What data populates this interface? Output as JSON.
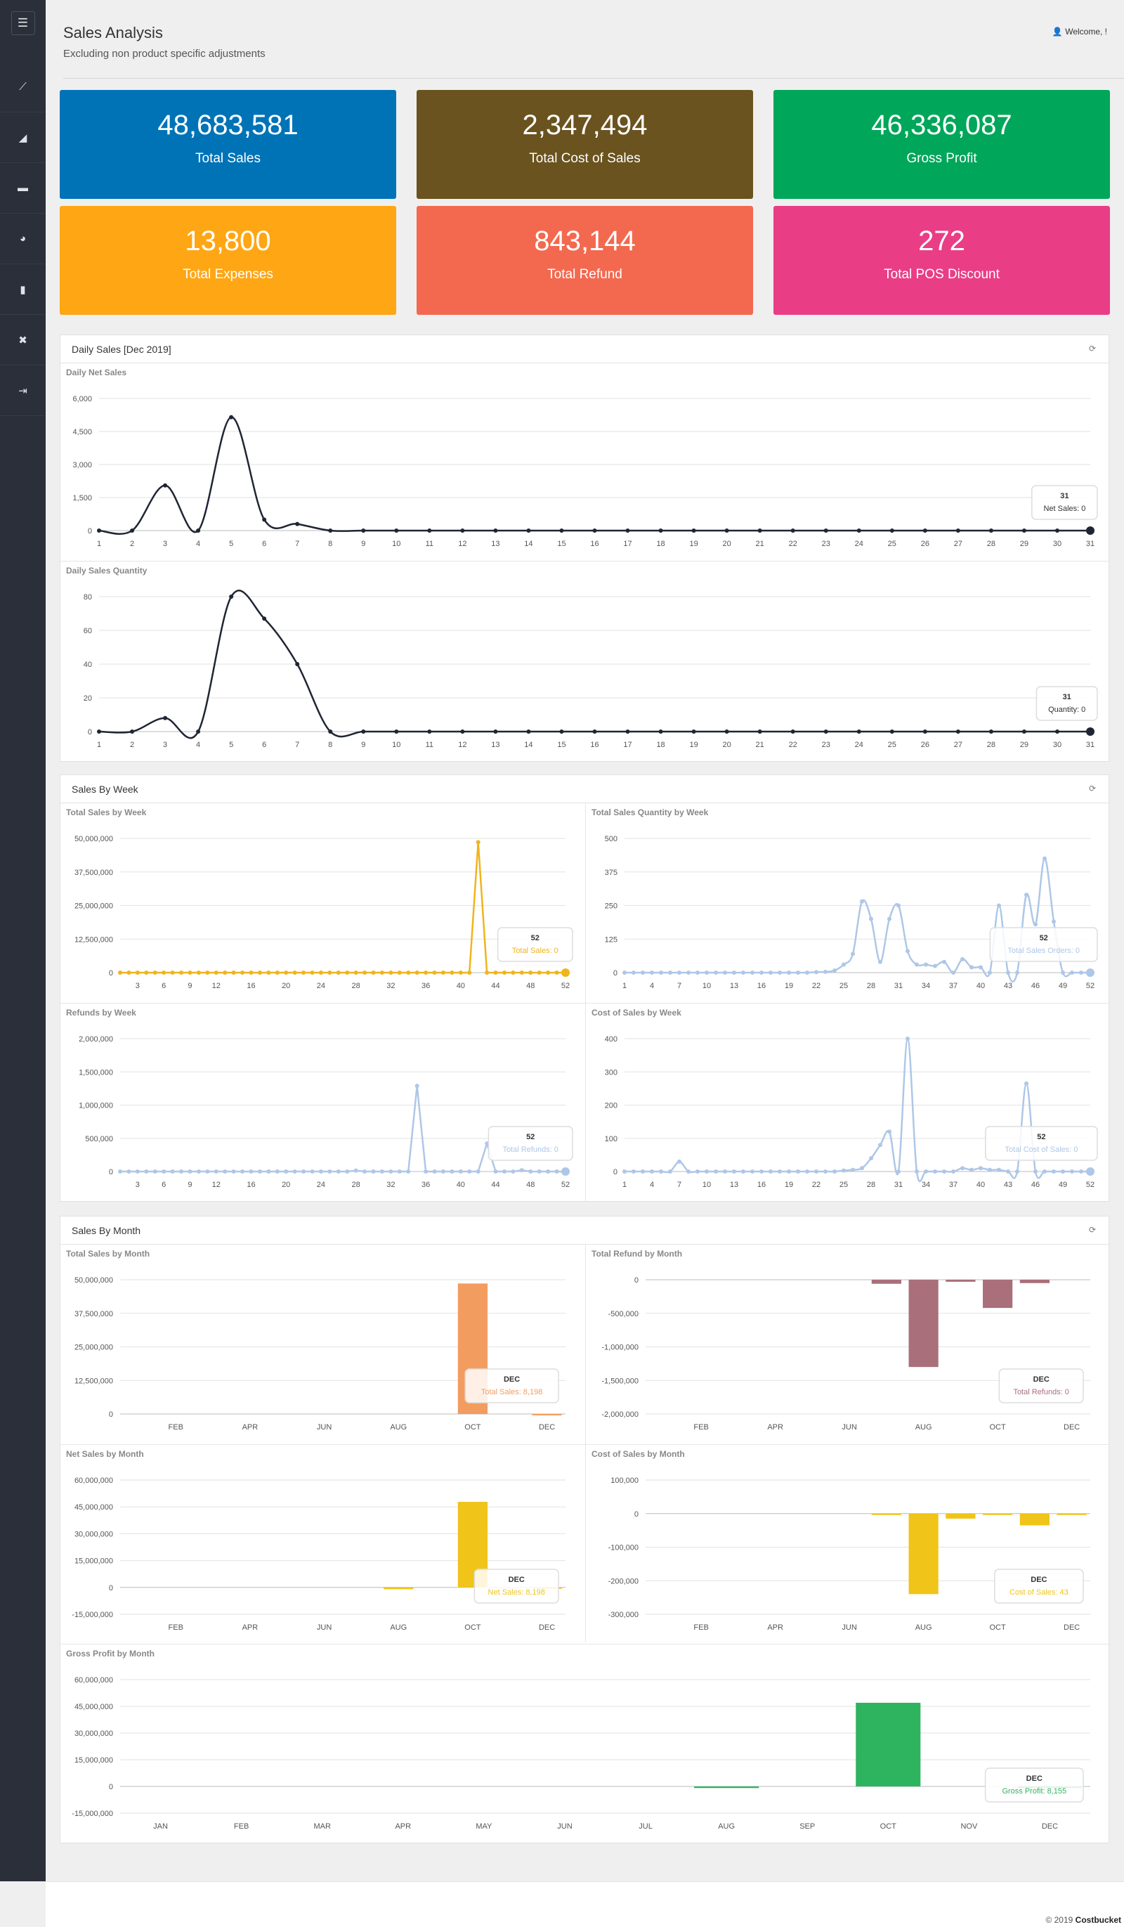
{
  "page": {
    "title": "Sales Analysis",
    "subtitle": "Excluding non product specific adjustments",
    "welcome": "Welcome, !"
  },
  "sidebar": {
    "items": [
      "menu-icon",
      "line-chart-icon",
      "area-chart-icon",
      "briefcase-icon",
      "pie-chart-icon",
      "clipboard-icon",
      "tools-icon",
      "logout-icon"
    ]
  },
  "stats": [
    {
      "value": "48,683,581",
      "label": "Total Sales",
      "color": "#0073b7"
    },
    {
      "value": "2,347,494",
      "label": "Total Cost of Sales",
      "color": "#6a531f"
    },
    {
      "value": "46,336,087",
      "label": "Gross Profit",
      "color": "#00a65a"
    },
    {
      "value": "13,800",
      "label": "Total Expenses",
      "color": "#ffa615"
    },
    {
      "value": "843,144",
      "label": "Total Refund",
      "color": "#f3694f"
    },
    {
      "value": "272",
      "label": "Total POS Discount",
      "color": "#e93e86"
    }
  ],
  "panels": {
    "daily": "Daily Sales [Dec 2019]",
    "weekly": "Sales By Week",
    "monthly": "Sales By Month"
  },
  "footer": {
    "copyright": "© 2019",
    "brand": "Costbucket"
  },
  "chart_data": [
    {
      "id": "daily-net",
      "type": "line",
      "title": "Daily Net Sales",
      "color": "#1f2533",
      "smooth": true,
      "x": [
        "1",
        "2",
        "3",
        "4",
        "5",
        "6",
        "7",
        "8",
        "9",
        "10",
        "11",
        "12",
        "13",
        "14",
        "15",
        "16",
        "17",
        "18",
        "19",
        "20",
        "21",
        "22",
        "23",
        "24",
        "25",
        "26",
        "27",
        "28",
        "29",
        "30",
        "31"
      ],
      "xticks_every": 1,
      "yticks": [
        "0",
        "1,500",
        "3,000",
        "4,500",
        "6,000"
      ],
      "ylim": [
        0,
        6000
      ],
      "values": [
        0,
        0,
        2050,
        0,
        5150,
        500,
        300,
        0,
        0,
        0,
        0,
        0,
        0,
        0,
        0,
        0,
        0,
        0,
        0,
        0,
        0,
        0,
        0,
        0,
        0,
        0,
        0,
        0,
        0,
        0,
        0
      ],
      "tooltip": {
        "title": "31",
        "text": "Net Sales: 0"
      }
    },
    {
      "id": "daily-qty",
      "type": "line",
      "title": "Daily Sales Quantity",
      "color": "#1f2533",
      "smooth": true,
      "x": [
        "1",
        "2",
        "3",
        "4",
        "5",
        "6",
        "7",
        "8",
        "9",
        "10",
        "11",
        "12",
        "13",
        "14",
        "15",
        "16",
        "17",
        "18",
        "19",
        "20",
        "21",
        "22",
        "23",
        "24",
        "25",
        "26",
        "27",
        "28",
        "29",
        "30",
        "31"
      ],
      "xticks_every": 1,
      "yticks": [
        "0",
        "20",
        "40",
        "60",
        "80"
      ],
      "ylim": [
        0,
        80
      ],
      "values": [
        0,
        0,
        8,
        0,
        80,
        67,
        40,
        0,
        0,
        0,
        0,
        0,
        0,
        0,
        0,
        0,
        0,
        0,
        0,
        0,
        0,
        0,
        0,
        0,
        0,
        0,
        0,
        0,
        0,
        0,
        0
      ],
      "tooltip": {
        "title": "31",
        "text": "Quantity: 0"
      }
    },
    {
      "id": "week-sales",
      "type": "line",
      "title": "Total Sales by Week",
      "color": "#f0b41c",
      "smooth": false,
      "x": [
        "1",
        "2",
        "3",
        "4",
        "5",
        "6",
        "7",
        "8",
        "9",
        "10",
        "11",
        "12",
        "13",
        "14",
        "15",
        "16",
        "17",
        "18",
        "19",
        "20",
        "21",
        "22",
        "23",
        "24",
        "25",
        "26",
        "27",
        "28",
        "29",
        "30",
        "31",
        "32",
        "33",
        "34",
        "35",
        "36",
        "37",
        "38",
        "39",
        "40",
        "41",
        "42",
        "43",
        "44",
        "45",
        "46",
        "47",
        "48",
        "49",
        "50",
        "51",
        "52"
      ],
      "xticklabels": [
        "3",
        "6",
        "9",
        "12",
        "16",
        "20",
        "24",
        "28",
        "32",
        "36",
        "40",
        "44",
        "48",
        "52"
      ],
      "yticks": [
        "0",
        "12,500,000",
        "25,000,000",
        "37,500,000",
        "50,000,000"
      ],
      "ylim": [
        0,
        50000000
      ],
      "values": [
        0,
        0,
        0,
        0,
        0,
        0,
        0,
        0,
        0,
        0,
        0,
        0,
        0,
        0,
        0,
        0,
        0,
        0,
        0,
        0,
        0,
        0,
        0,
        0,
        0,
        0,
        0,
        0,
        0,
        0,
        0,
        0,
        0,
        0,
        0,
        0,
        0,
        0,
        0,
        0,
        0,
        48600000,
        0,
        0,
        0,
        0,
        0,
        0,
        0,
        0,
        0,
        0
      ],
      "tooltip": {
        "title": "52",
        "text": "Total Sales: 0"
      }
    },
    {
      "id": "week-qty",
      "type": "line",
      "title": "Total Sales Quantity by Week",
      "color": "#aec7e8",
      "smooth": true,
      "x": [
        "1",
        "2",
        "3",
        "4",
        "5",
        "6",
        "7",
        "8",
        "9",
        "10",
        "11",
        "12",
        "13",
        "14",
        "15",
        "16",
        "17",
        "18",
        "19",
        "20",
        "21",
        "22",
        "23",
        "24",
        "25",
        "26",
        "27",
        "28",
        "29",
        "30",
        "31",
        "32",
        "33",
        "34",
        "35",
        "36",
        "37",
        "38",
        "39",
        "40",
        "41",
        "42",
        "43",
        "44",
        "45",
        "46",
        "47",
        "48",
        "49",
        "50",
        "51",
        "52"
      ],
      "xticklabels": [
        "1",
        "4",
        "7",
        "10",
        "13",
        "16",
        "19",
        "22",
        "25",
        "28",
        "31",
        "34",
        "37",
        "40",
        "43",
        "46",
        "49",
        "52"
      ],
      "yticks": [
        "0",
        "125",
        "250",
        "375",
        "500"
      ],
      "ylim": [
        0,
        500
      ],
      "values": [
        0,
        0,
        0,
        0,
        0,
        0,
        0,
        0,
        0,
        0,
        0,
        0,
        0,
        0,
        0,
        0,
        0,
        0,
        0,
        0,
        0,
        2,
        3,
        8,
        30,
        70,
        265,
        200,
        40,
        200,
        250,
        80,
        30,
        30,
        25,
        40,
        0,
        50,
        20,
        20,
        0,
        250,
        0,
        0,
        290,
        180,
        425,
        190,
        0,
        0,
        0,
        0
      ],
      "tooltip": {
        "title": "52",
        "text": "Total Sales Orders: 0"
      }
    },
    {
      "id": "week-refunds",
      "type": "line",
      "title": "Refunds by Week",
      "color": "#aec7e8",
      "smooth": false,
      "x": [
        "1",
        "2",
        "3",
        "4",
        "5",
        "6",
        "7",
        "8",
        "9",
        "10",
        "11",
        "12",
        "13",
        "14",
        "15",
        "16",
        "17",
        "18",
        "19",
        "20",
        "21",
        "22",
        "23",
        "24",
        "25",
        "26",
        "27",
        "28",
        "29",
        "30",
        "31",
        "32",
        "33",
        "34",
        "35",
        "36",
        "37",
        "38",
        "39",
        "40",
        "41",
        "42",
        "43",
        "44",
        "45",
        "46",
        "47",
        "48",
        "49",
        "50",
        "51",
        "52"
      ],
      "xticklabels": [
        "3",
        "6",
        "9",
        "12",
        "16",
        "20",
        "24",
        "28",
        "32",
        "36",
        "40",
        "44",
        "48",
        "52"
      ],
      "yticks": [
        "0",
        "500,000",
        "1,000,000",
        "1,500,000",
        "2,000,000"
      ],
      "ylim": [
        0,
        2000000
      ],
      "values": [
        0,
        0,
        0,
        0,
        0,
        0,
        0,
        0,
        0,
        0,
        0,
        0,
        0,
        0,
        0,
        0,
        0,
        0,
        0,
        0,
        0,
        0,
        0,
        0,
        0,
        0,
        0,
        15000,
        0,
        0,
        0,
        0,
        0,
        0,
        1290000,
        0,
        0,
        0,
        0,
        0,
        0,
        0,
        420000,
        0,
        0,
        0,
        20000,
        0,
        0,
        0,
        0,
        0
      ],
      "tooltip": {
        "title": "52",
        "text": "Total Refunds: 0"
      }
    },
    {
      "id": "week-cost",
      "type": "line",
      "title": "Cost of Sales by Week",
      "color": "#aec7e8",
      "smooth": true,
      "x": [
        "1",
        "2",
        "3",
        "4",
        "5",
        "6",
        "7",
        "8",
        "9",
        "10",
        "11",
        "12",
        "13",
        "14",
        "15",
        "16",
        "17",
        "18",
        "19",
        "20",
        "21",
        "22",
        "23",
        "24",
        "25",
        "26",
        "27",
        "28",
        "29",
        "30",
        "31",
        "32",
        "33",
        "34",
        "35",
        "36",
        "37",
        "38",
        "39",
        "40",
        "41",
        "42",
        "43",
        "44",
        "45",
        "46",
        "47",
        "48",
        "49",
        "50",
        "51",
        "52"
      ],
      "xticklabels": [
        "1",
        "4",
        "7",
        "10",
        "13",
        "16",
        "19",
        "22",
        "25",
        "28",
        "31",
        "34",
        "37",
        "40",
        "43",
        "46",
        "49",
        "52"
      ],
      "yticks": [
        "0",
        "100",
        "200",
        "300",
        "400"
      ],
      "ylim": [
        0,
        400
      ],
      "values": [
        0,
        0,
        0,
        0,
        0,
        0,
        30,
        0,
        0,
        0,
        0,
        0,
        0,
        0,
        0,
        0,
        0,
        0,
        0,
        0,
        0,
        0,
        0,
        0,
        3,
        5,
        10,
        40,
        80,
        120,
        0,
        400,
        0,
        0,
        0,
        0,
        0,
        10,
        5,
        10,
        5,
        5,
        0,
        0,
        265,
        0,
        0,
        0,
        0,
        0,
        0,
        0
      ],
      "tooltip": {
        "title": "52",
        "text": "Total Cost of Sales: 0"
      }
    },
    {
      "id": "month-sales",
      "type": "bar",
      "title": "Total Sales by Month",
      "color": "#f39c5f",
      "categories": [
        "JAN",
        "FEB",
        "MAR",
        "APR",
        "MAY",
        "JUN",
        "JUL",
        "AUG",
        "SEP",
        "OCT",
        "NOV",
        "DEC"
      ],
      "xticklabels": [
        "FEB",
        "APR",
        "JUN",
        "AUG",
        "OCT",
        "DEC"
      ],
      "yticks": [
        "0",
        "12,500,000",
        "25,000,000",
        "37,500,000",
        "50,000,000"
      ],
      "ylim": [
        0,
        50000000
      ],
      "values": [
        0,
        0,
        0,
        0,
        0,
        0,
        0,
        0,
        0,
        48600000,
        0,
        8198
      ],
      "tooltip": {
        "title": "DEC",
        "text": "Total Sales: 8,198"
      }
    },
    {
      "id": "month-refund",
      "type": "bar",
      "title": "Total Refund by Month",
      "color": "#a96f7a",
      "categories": [
        "JAN",
        "FEB",
        "MAR",
        "APR",
        "MAY",
        "JUN",
        "JUL",
        "AUG",
        "SEP",
        "OCT",
        "NOV",
        "DEC"
      ],
      "xticklabels": [
        "FEB",
        "APR",
        "JUN",
        "AUG",
        "OCT",
        "DEC"
      ],
      "yticks": [
        "-2,000,000",
        "-1,500,000",
        "-1,000,000",
        "-500,000",
        "0"
      ],
      "ylim": [
        -2000000,
        0
      ],
      "values": [
        0,
        0,
        0,
        0,
        0,
        0,
        -60000,
        -1300000,
        -30000,
        -420000,
        -50000,
        0
      ],
      "tooltip": {
        "title": "DEC",
        "text": "Total Refunds: 0"
      }
    },
    {
      "id": "month-net",
      "type": "bar",
      "title": "Net Sales by Month",
      "color": "#f0c419",
      "categories": [
        "JAN",
        "FEB",
        "MAR",
        "APR",
        "MAY",
        "JUN",
        "JUL",
        "AUG",
        "SEP",
        "OCT",
        "NOV",
        "DEC"
      ],
      "xticklabels": [
        "FEB",
        "APR",
        "JUN",
        "AUG",
        "OCT",
        "DEC"
      ],
      "yticks": [
        "-15,000,000",
        "0",
        "15,000,000",
        "30,000,000",
        "45,000,000",
        "60,000,000"
      ],
      "ylim": [
        -15000000,
        60000000
      ],
      "values": [
        0,
        0,
        0,
        0,
        0,
        0,
        0,
        -1000000,
        0,
        47800000,
        0,
        8198
      ],
      "tooltip": {
        "title": "DEC",
        "text": "Net Sales: 8,198"
      }
    },
    {
      "id": "month-cost",
      "type": "bar",
      "title": "Cost of Sales by Month",
      "color": "#f0c419",
      "categories": [
        "JAN",
        "FEB",
        "MAR",
        "APR",
        "MAY",
        "JUN",
        "JUL",
        "AUG",
        "SEP",
        "OCT",
        "NOV",
        "DEC"
      ],
      "xticklabels": [
        "FEB",
        "APR",
        "JUN",
        "AUG",
        "OCT",
        "DEC"
      ],
      "yticks": [
        "-300,000",
        "-200,000",
        "-100,000",
        "0",
        "100,000"
      ],
      "ylim": [
        -300000,
        100000
      ],
      "values": [
        0,
        0,
        0,
        0,
        0,
        0,
        -1000,
        -240000,
        -15000,
        -1000,
        -35000,
        43
      ],
      "tooltip": {
        "title": "DEC",
        "text": "Cost of Sales: 43"
      }
    },
    {
      "id": "month-gross",
      "type": "bar",
      "title": "Gross Profit by Month",
      "color": "#2eb35e",
      "categories": [
        "JAN",
        "FEB",
        "MAR",
        "APR",
        "MAY",
        "JUN",
        "JUL",
        "AUG",
        "SEP",
        "OCT",
        "NOV",
        "DEC"
      ],
      "xticklabels": [
        "JAN",
        "FEB",
        "MAR",
        "APR",
        "MAY",
        "JUN",
        "JUL",
        "AUG",
        "SEP",
        "OCT",
        "NOV",
        "DEC"
      ],
      "yticks": [
        "-15,000,000",
        "0",
        "15,000,000",
        "30,000,000",
        "45,000,000",
        "60,000,000"
      ],
      "ylim": [
        -15000000,
        60000000
      ],
      "values": [
        0,
        0,
        0,
        0,
        0,
        0,
        0,
        -900000,
        0,
        47000000,
        0,
        8155
      ],
      "tooltip": {
        "title": "DEC",
        "text": "Gross Profit: 8,155"
      }
    }
  ]
}
